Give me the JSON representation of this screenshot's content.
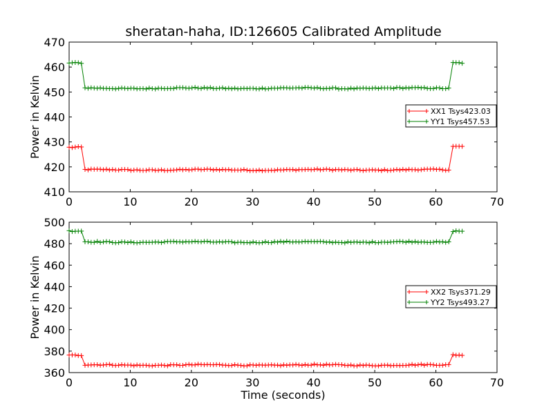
{
  "figure": {
    "title": "sheratan-haha, ID:126605 Calibrated Amplitude"
  },
  "chart_data": [
    {
      "type": "line",
      "xlabel": "",
      "ylabel": "Power in Kelvin",
      "xlim": [
        0,
        70
      ],
      "ylim": [
        410,
        470
      ],
      "xticks": [
        "0",
        "10",
        "20",
        "30",
        "40",
        "50",
        "60",
        "70"
      ],
      "yticks": [
        "410",
        "420",
        "430",
        "440",
        "450",
        "460",
        "470"
      ],
      "legend_position": "center-right",
      "series": [
        {
          "name": "XX1 Tsys423.03",
          "color": "#ff0000",
          "marker": "plus",
          "segments": [
            {
              "x_start": 0,
              "x_end": 2.1,
              "y": 427.8
            },
            {
              "x_start": 2.6,
              "x_end": 62.3,
              "y": 418.8
            },
            {
              "x_start": 62.8,
              "x_end": 64.3,
              "y": 428.2
            }
          ],
          "step_points": [
            [
              0,
              427.0
            ],
            [
              2.1,
              427.6
            ],
            [
              2.5,
              418.8
            ],
            [
              62.3,
              419.5
            ],
            [
              62.8,
              427.8
            ],
            [
              64.3,
              428.3
            ]
          ]
        },
        {
          "name": "YY1 Tsys457.53",
          "color": "#008000",
          "marker": "plus",
          "segments": [
            {
              "x_start": 0,
              "x_end": 2.1,
              "y": 461.5
            },
            {
              "x_start": 2.6,
              "x_end": 62.3,
              "y": 451.5
            },
            {
              "x_start": 62.8,
              "x_end": 64.3,
              "y": 461.8
            }
          ],
          "step_points": [
            [
              0,
              461.3
            ],
            [
              2.1,
              462.0
            ],
            [
              2.5,
              452.5
            ],
            [
              62.3,
              451.8
            ],
            [
              62.8,
              461.5
            ],
            [
              64.3,
              462.0
            ]
          ]
        }
      ]
    },
    {
      "type": "line",
      "xlabel": "Time (seconds)",
      "ylabel": "Power in Kelvin",
      "xlim": [
        0,
        70
      ],
      "ylim": [
        360,
        500
      ],
      "xticks": [
        "0",
        "10",
        "20",
        "30",
        "40",
        "50",
        "60",
        "70"
      ],
      "yticks": [
        "360",
        "380",
        "400",
        "420",
        "440",
        "460",
        "480",
        "500"
      ],
      "legend_position": "center-right",
      "series": [
        {
          "name": "XX2 Tsys371.29",
          "color": "#ff0000",
          "marker": "plus",
          "segments": [
            {
              "x_start": 0,
              "x_end": 2.1,
              "y": 376.0
            },
            {
              "x_start": 2.6,
              "x_end": 62.3,
              "y": 367.0
            },
            {
              "x_start": 62.8,
              "x_end": 64.3,
              "y": 376.5
            }
          ],
          "step_points": [
            [
              0,
              375.5
            ],
            [
              2.1,
              376.5
            ],
            [
              2.5,
              367.2
            ],
            [
              62.3,
              367.0
            ],
            [
              62.8,
              376.0
            ],
            [
              64.3,
              377.0
            ]
          ]
        },
        {
          "name": "YY2 Tsys493.27",
          "color": "#008000",
          "marker": "plus",
          "segments": [
            {
              "x_start": 0,
              "x_end": 2.1,
              "y": 491.5
            },
            {
              "x_start": 2.6,
              "x_end": 62.3,
              "y": 481.5
            },
            {
              "x_start": 62.8,
              "x_end": 64.3,
              "y": 492.0
            }
          ],
          "step_points": [
            [
              0,
              491.0
            ],
            [
              2.1,
              492.0
            ],
            [
              2.5,
              482.5
            ],
            [
              62.3,
              482.0
            ],
            [
              62.8,
              491.5
            ],
            [
              64.3,
              492.5
            ]
          ]
        }
      ]
    }
  ]
}
